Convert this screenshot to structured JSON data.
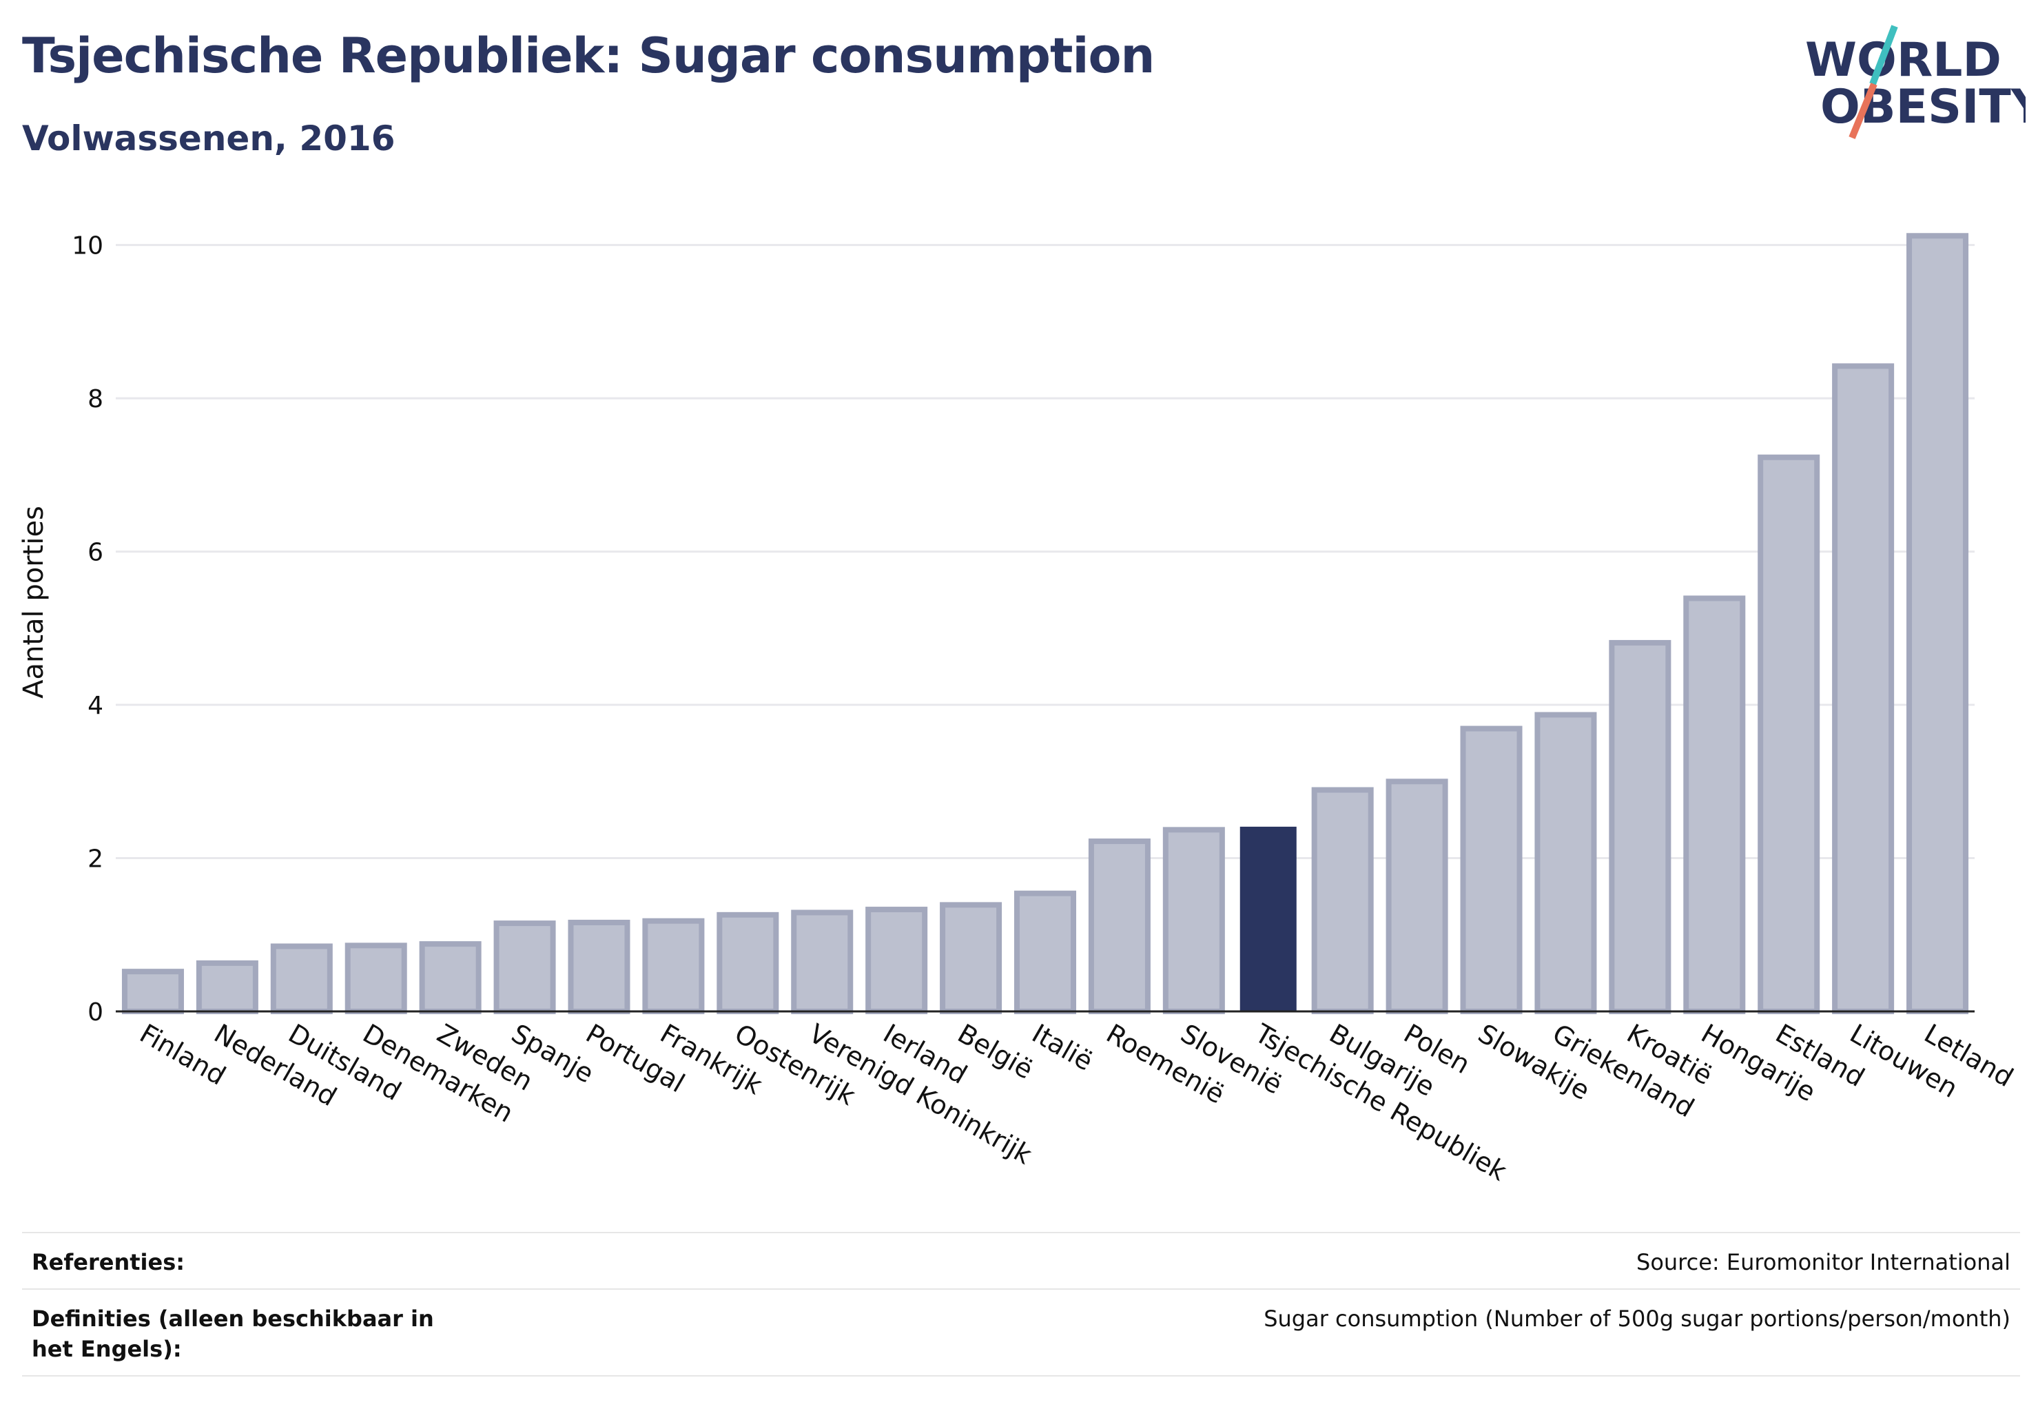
{
  "header": {
    "title": "Tsjechische Republiek: Sugar consumption",
    "subtitle": "Volwassenen, 2016"
  },
  "logo": {
    "line1": "WORLD",
    "line2": "OBESITY",
    "accent_colors": [
      "#3fbfbf",
      "#e8735a"
    ]
  },
  "chart_data": {
    "type": "bar",
    "ylabel": "Aantal porties",
    "xlabel": "",
    "ylim": [
      0,
      10.5
    ],
    "yticks": [
      0,
      2,
      4,
      6,
      8,
      10
    ],
    "grid": true,
    "highlight": "Tsjechische Republiek",
    "colors": {
      "bar": "#bcc0cf",
      "bar_edge": "#a3a8bd",
      "highlight": "#2a3560"
    },
    "categories": [
      "Finland",
      "Nederland",
      "Duitsland",
      "Denemarken",
      "Zweden",
      "Spanje",
      "Portugal",
      "Frankrijk",
      "Oostenrijk",
      "Verenigd Koninkrijk",
      "Ierland",
      "België",
      "Italië",
      "Roemenië",
      "Slovenië",
      "Tsjechische Republiek",
      "Bulgarije",
      "Polen",
      "Slowakije",
      "Griekenland",
      "Kroatië",
      "Hongarije",
      "Estland",
      "Litouwen",
      "Letland"
    ],
    "values": [
      0.52,
      0.63,
      0.85,
      0.86,
      0.88,
      1.15,
      1.16,
      1.18,
      1.26,
      1.29,
      1.33,
      1.39,
      1.54,
      2.22,
      2.37,
      2.41,
      2.89,
      3.0,
      3.69,
      3.87,
      4.81,
      5.39,
      7.23,
      8.42,
      10.12
    ]
  },
  "footer": {
    "references_label": "Referenties:",
    "references_value": "Source: Euromonitor International",
    "definitions_label": "Definities (alleen beschikbaar in het Engels):",
    "definitions_value": "Sugar consumption (Number of 500g sugar portions/person/month)"
  }
}
